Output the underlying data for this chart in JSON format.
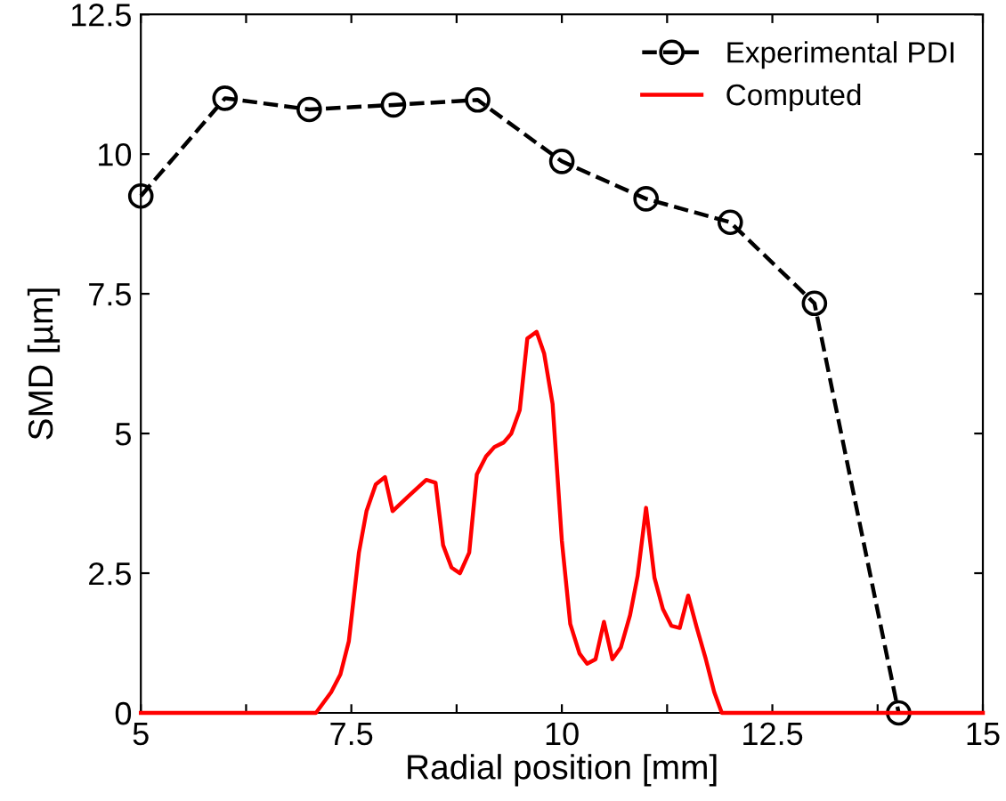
{
  "chart_data": {
    "type": "line",
    "xlabel": "Radial position [mm]",
    "ylabel": "SMD [µm]",
    "xlim": [
      5,
      15
    ],
    "ylim": [
      0,
      12.5
    ],
    "xticks": [
      5,
      {
        "value": 6.25,
        "label": null
      },
      7.5,
      {
        "value": 8.75,
        "label": null
      },
      10,
      {
        "value": 11.25,
        "label": null
      },
      12.5,
      {
        "value": 13.75,
        "label": null
      },
      15
    ],
    "yticks": [
      0,
      2.5,
      5,
      7.5,
      10,
      12.5
    ],
    "grid": false,
    "legend": "top right",
    "series": [
      {
        "name": "Experimental PDI",
        "color": "#000000",
        "marker": "circle",
        "line_style": "dashed",
        "x": [
          5,
          6,
          7,
          8,
          9,
          10,
          11,
          12,
          13,
          14
        ],
        "values": [
          9.25,
          11.0,
          10.8,
          10.88,
          10.97,
          9.87,
          9.2,
          8.78,
          7.33,
          0
        ]
      },
      {
        "name": "Computed",
        "color": "#ff0000",
        "marker": "none",
        "line_style": "solid",
        "x": [
          5,
          7.08,
          7.26,
          7.37,
          7.47,
          7.59,
          7.68,
          7.79,
          7.9,
          7.99,
          8.18,
          8.39,
          8.5,
          8.59,
          8.69,
          8.79,
          8.9,
          8.99,
          9.1,
          9.2,
          9.31,
          9.4,
          9.5,
          9.59,
          9.7,
          9.79,
          9.89,
          10.0,
          10.1,
          10.21,
          10.3,
          10.4,
          10.5,
          10.6,
          10.7,
          10.81,
          10.9,
          11.0,
          11.1,
          11.2,
          11.3,
          11.4,
          11.5,
          11.6,
          11.71,
          11.81,
          11.9,
          15
        ],
        "values": [
          0,
          0,
          0.37,
          0.69,
          1.28,
          2.87,
          3.61,
          4.09,
          4.22,
          3.61,
          3.88,
          4.17,
          4.12,
          3.0,
          2.6,
          2.5,
          2.87,
          4.27,
          4.59,
          4.76,
          4.84,
          5.0,
          5.42,
          6.7,
          6.82,
          6.43,
          5.53,
          3.08,
          1.59,
          1.06,
          0.88,
          0.96,
          1.63,
          0.96,
          1.17,
          1.75,
          2.45,
          3.67,
          2.42,
          1.86,
          1.56,
          1.52,
          2.1,
          1.54,
          0.96,
          0.37,
          0,
          0
        ]
      }
    ]
  }
}
